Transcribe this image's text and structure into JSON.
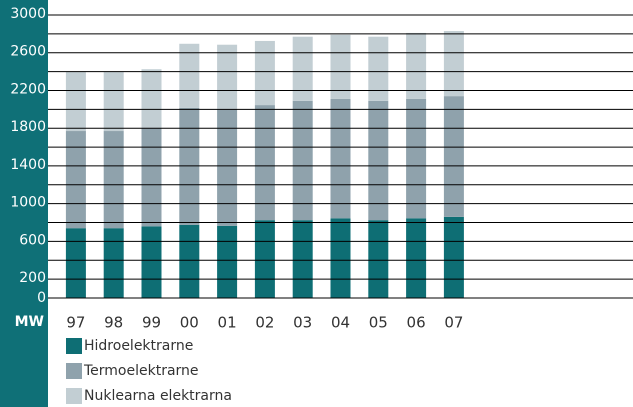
{
  "chart_data": {
    "type": "stacked_bar",
    "y_label": "MW",
    "categories": [
      "97",
      "98",
      "99",
      "00",
      "01",
      "02",
      "03",
      "04",
      "05",
      "06",
      "07"
    ],
    "series": [
      {
        "name": "Hidroelektrarne",
        "color": "#0e6e74",
        "values": [
          740,
          740,
          760,
          775,
          765,
          825,
          825,
          845,
          825,
          845,
          860
        ]
      },
      {
        "name": "Termoelektrarne",
        "color": "#8fa2ac",
        "values": [
          1030,
          1030,
          1040,
          1240,
          1240,
          1220,
          1265,
          1265,
          1265,
          1265,
          1280
        ]
      },
      {
        "name": "Nuklearna elektrarna",
        "color": "#c2ced3",
        "values": [
          625,
          625,
          625,
          680,
          680,
          680,
          680,
          680,
          680,
          700,
          690
        ]
      }
    ],
    "ylim": [
      0,
      3000
    ],
    "yticks": [
      0,
      200,
      600,
      1000,
      1400,
      1800,
      2200,
      2600,
      3000
    ],
    "minor_yticks": [
      400,
      800,
      1200,
      1600,
      2000,
      2400,
      2800
    ],
    "grid": true
  }
}
